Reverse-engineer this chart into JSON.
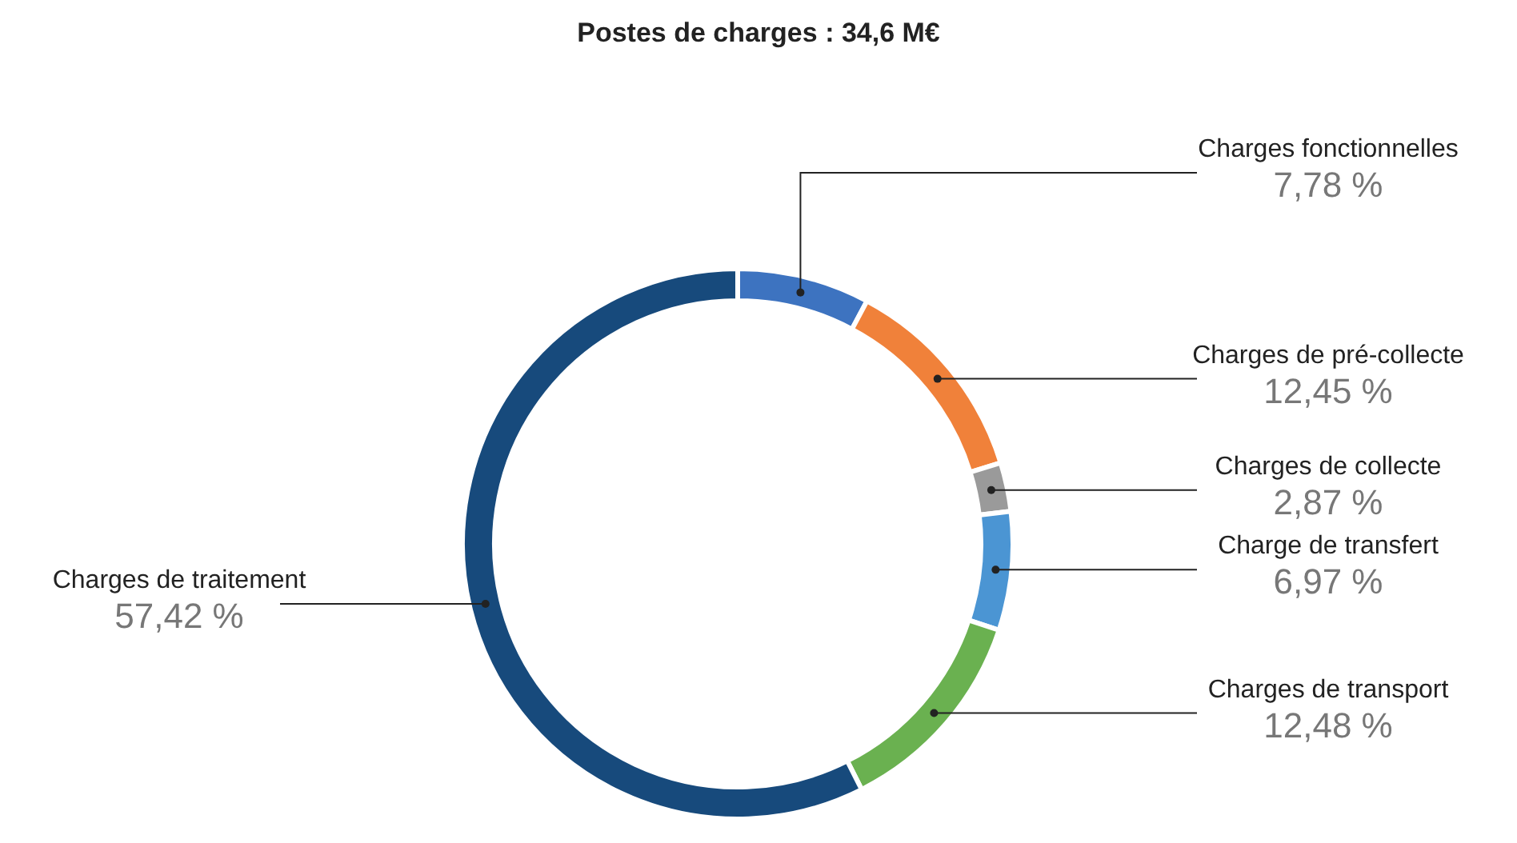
{
  "chart_data": {
    "type": "donut",
    "title": "Postes de charges : 34,6 M€",
    "categories": [
      "Charges fonctionnelles",
      "Charges de pré-collecte",
      "Charges de collecte",
      "Charge de transfert",
      "Charges de transport",
      "Charges de traitement"
    ],
    "values": [
      7.78,
      12.45,
      2.87,
      6.97,
      12.48,
      57.42
    ],
    "colors": [
      "#3d73c0",
      "#f0813a",
      "#9a9a9a",
      "#4b95d3",
      "#6ab150",
      "#174a7c"
    ],
    "value_labels": [
      "7,78 %",
      "12,45 %",
      "2,87 %",
      "6,97 %",
      "12,48 %",
      "57,42 %"
    ],
    "legend": false
  }
}
